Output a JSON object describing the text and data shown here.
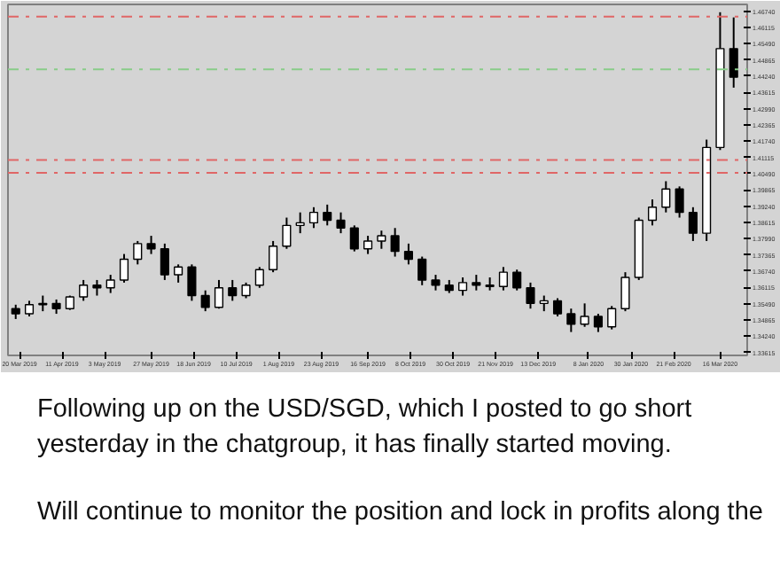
{
  "chart_data": {
    "type": "candlestick",
    "color": "#000000",
    "x": [
      "2019-03-18",
      "2019-03-25",
      "2019-04-01",
      "2019-04-08",
      "2019-04-15",
      "2019-04-22",
      "2019-04-29",
      "2019-05-06",
      "2019-05-13",
      "2019-05-20",
      "2019-05-27",
      "2019-06-03",
      "2019-06-10",
      "2019-06-17",
      "2019-06-24",
      "2019-07-01",
      "2019-07-08",
      "2019-07-15",
      "2019-07-22",
      "2019-07-29",
      "2019-08-05",
      "2019-08-12",
      "2019-08-19",
      "2019-08-26",
      "2019-09-02",
      "2019-09-09",
      "2019-09-16",
      "2019-09-23",
      "2019-09-30",
      "2019-10-07",
      "2019-10-14",
      "2019-10-21",
      "2019-10-28",
      "2019-11-04",
      "2019-11-11",
      "2019-11-18",
      "2019-11-25",
      "2019-12-02",
      "2019-12-09",
      "2019-12-16",
      "2019-12-23",
      "2019-12-30",
      "2020-01-06",
      "2020-01-13",
      "2020-01-20",
      "2020-01-27",
      "2020-02-03",
      "2020-02-10",
      "2020-02-17",
      "2020-02-24",
      "2020-03-02",
      "2020-03-09",
      "2020-03-16",
      "2020-03-23"
    ],
    "ohlc": [
      [
        1.353,
        1.3545,
        1.349,
        1.351
      ],
      [
        1.351,
        1.356,
        1.35,
        1.3545
      ],
      [
        1.3545,
        1.358,
        1.352,
        1.355
      ],
      [
        1.355,
        1.3565,
        1.351,
        1.353
      ],
      [
        1.353,
        1.358,
        1.3525,
        1.3575
      ],
      [
        1.3575,
        1.364,
        1.356,
        1.362
      ],
      [
        1.362,
        1.364,
        1.358,
        1.361
      ],
      [
        1.361,
        1.366,
        1.359,
        1.364
      ],
      [
        1.364,
        1.374,
        1.363,
        1.372
      ],
      [
        1.372,
        1.379,
        1.37,
        1.378
      ],
      [
        1.378,
        1.381,
        1.374,
        1.376
      ],
      [
        1.376,
        1.378,
        1.364,
        1.366
      ],
      [
        1.366,
        1.37,
        1.363,
        1.369
      ],
      [
        1.369,
        1.37,
        1.356,
        1.358
      ],
      [
        1.358,
        1.36,
        1.352,
        1.3535
      ],
      [
        1.3535,
        1.364,
        1.353,
        1.361
      ],
      [
        1.361,
        1.364,
        1.356,
        1.358
      ],
      [
        1.358,
        1.363,
        1.357,
        1.362
      ],
      [
        1.362,
        1.369,
        1.361,
        1.368
      ],
      [
        1.368,
        1.379,
        1.367,
        1.377
      ],
      [
        1.377,
        1.388,
        1.376,
        1.385
      ],
      [
        1.385,
        1.39,
        1.382,
        1.386
      ],
      [
        1.386,
        1.392,
        1.384,
        1.39
      ],
      [
        1.39,
        1.393,
        1.385,
        1.387
      ],
      [
        1.387,
        1.39,
        1.382,
        1.384
      ],
      [
        1.384,
        1.385,
        1.375,
        1.376
      ],
      [
        1.376,
        1.381,
        1.374,
        1.379
      ],
      [
        1.379,
        1.383,
        1.376,
        1.381
      ],
      [
        1.381,
        1.384,
        1.373,
        1.375
      ],
      [
        1.375,
        1.378,
        1.37,
        1.372
      ],
      [
        1.372,
        1.373,
        1.362,
        1.364
      ],
      [
        1.364,
        1.366,
        1.36,
        1.362
      ],
      [
        1.362,
        1.364,
        1.359,
        1.36
      ],
      [
        1.36,
        1.365,
        1.358,
        1.363
      ],
      [
        1.363,
        1.366,
        1.36,
        1.362
      ],
      [
        1.362,
        1.365,
        1.36,
        1.3615
      ],
      [
        1.3615,
        1.369,
        1.36,
        1.367
      ],
      [
        1.367,
        1.368,
        1.36,
        1.361
      ],
      [
        1.361,
        1.363,
        1.353,
        1.355
      ],
      [
        1.355,
        1.358,
        1.352,
        1.356
      ],
      [
        1.356,
        1.357,
        1.35,
        1.351
      ],
      [
        1.351,
        1.353,
        1.344,
        1.347
      ],
      [
        1.347,
        1.355,
        1.346,
        1.35
      ],
      [
        1.35,
        1.351,
        1.344,
        1.346
      ],
      [
        1.346,
        1.354,
        1.345,
        1.353
      ],
      [
        1.353,
        1.367,
        1.352,
        1.365
      ],
      [
        1.365,
        1.388,
        1.364,
        1.387
      ],
      [
        1.387,
        1.395,
        1.385,
        1.392
      ],
      [
        1.392,
        1.402,
        1.39,
        1.399
      ],
      [
        1.399,
        1.4,
        1.388,
        1.39
      ],
      [
        1.39,
        1.392,
        1.379,
        1.382
      ],
      [
        1.382,
        1.418,
        1.379,
        1.415
      ],
      [
        1.415,
        1.467,
        1.414,
        1.453
      ],
      [
        1.453,
        1.465,
        1.438,
        1.442
      ]
    ],
    "xlim": [
      "2019-03-14",
      "2020-03-30"
    ],
    "xticks": [
      {
        "value": "2019-03-20",
        "label": "20 Mar 2019"
      },
      {
        "value": "2019-04-11",
        "label": "11 Apr 2019"
      },
      {
        "value": "2019-05-03",
        "label": "3 May 2019"
      },
      {
        "value": "2019-05-27",
        "label": "27 May 2019"
      },
      {
        "value": "2019-06-18",
        "label": "18 Jun 2019"
      },
      {
        "value": "2019-07-10",
        "label": "10 Jul 2019"
      },
      {
        "value": "2019-08-01",
        "label": "1 Aug 2019"
      },
      {
        "value": "2019-08-23",
        "label": "23 Aug 2019"
      },
      {
        "value": "2019-09-16",
        "label": "16 Sep 2019"
      },
      {
        "value": "2019-10-08",
        "label": "8 Oct 2019"
      },
      {
        "value": "2019-10-30",
        "label": "30 Oct 2019"
      },
      {
        "value": "2019-11-21",
        "label": "21 Nov 2019"
      },
      {
        "value": "2019-12-13",
        "label": "13 Dec 2019"
      },
      {
        "value": "2020-01-08",
        "label": "8 Jan 2020"
      },
      {
        "value": "2020-01-30",
        "label": "30 Jan 2020"
      },
      {
        "value": "2020-02-21",
        "label": "21 Feb 2020"
      },
      {
        "value": "2020-03-16",
        "label": "16 Mar 2020"
      }
    ],
    "ylim": [
      1.335,
      1.47
    ],
    "yticks": [
      {
        "value": 1.33615,
        "label": "1.33615"
      },
      {
        "value": 1.3424,
        "label": "1.34240"
      },
      {
        "value": 1.34865,
        "label": "1.34865"
      },
      {
        "value": 1.3549,
        "label": "1.35490"
      },
      {
        "value": 1.36115,
        "label": "1.36115"
      },
      {
        "value": 1.3674,
        "label": "1.36740"
      },
      {
        "value": 1.37365,
        "label": "1.37365"
      },
      {
        "value": 1.3799,
        "label": "1.37990"
      },
      {
        "value": 1.38615,
        "label": "1.38615"
      },
      {
        "value": 1.3924,
        "label": "1.39240"
      },
      {
        "value": 1.39865,
        "label": "1.39865"
      },
      {
        "value": 1.4049,
        "label": "1.40490"
      },
      {
        "value": 1.41115,
        "label": "1.41115"
      },
      {
        "value": 1.4174,
        "label": "1.41740"
      },
      {
        "value": 1.42365,
        "label": "1.42365"
      },
      {
        "value": 1.4299,
        "label": "1.42990"
      },
      {
        "value": 1.43615,
        "label": "1.43615"
      },
      {
        "value": 1.4424,
        "label": "1.44240"
      },
      {
        "value": 1.44865,
        "label": "1.44865"
      },
      {
        "value": 1.4549,
        "label": "1.45490"
      },
      {
        "value": 1.46115,
        "label": "1.46115"
      },
      {
        "value": 1.4674,
        "label": "1.46740"
      }
    ],
    "ref_lines": [
      {
        "axis": "y",
        "value": 1.4653,
        "color": "#e06666",
        "line_style": "dashdot"
      },
      {
        "axis": "y",
        "value": 1.445,
        "color": "#88cc88",
        "line_style": "dashdot"
      },
      {
        "axis": "y",
        "value": 1.4102,
        "color": "#e06666",
        "line_style": "dashdot"
      },
      {
        "axis": "y",
        "value": 1.4052,
        "color": "#e06666",
        "line_style": "dashdot"
      }
    ],
    "grid": false,
    "annotations": [
      "Following up on the USD/SGD, which I posted to go short yesterday in the chatgroup, it has finally started moving.",
      "Will continue to monitor the position and lock in profits along the"
    ]
  }
}
